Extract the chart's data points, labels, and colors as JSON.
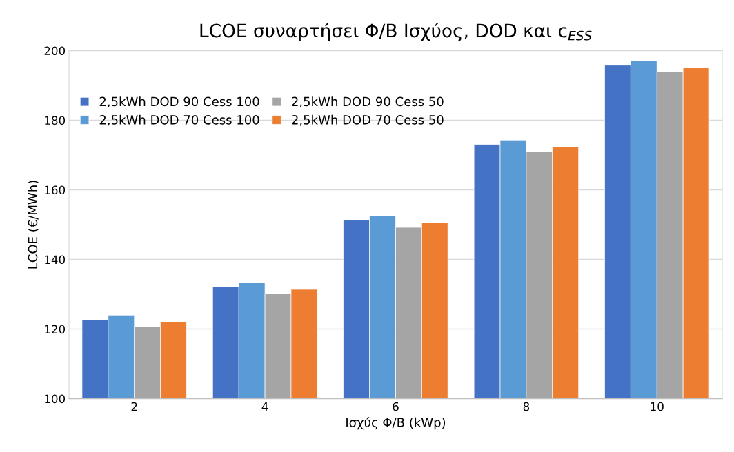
{
  "chart_data": {
    "type": "bar",
    "title": "LCOE συναρτήσει Φ/Β Ισχύος, DOD και c$_{ESS}$",
    "xlabel": "Ισχύς Φ/Β (kWp)",
    "ylabel": "LCOE (€/MWh)",
    "categories": [
      "2",
      "4",
      "6",
      "8",
      "10"
    ],
    "series": [
      {
        "name": "2,5kWh DOD 90 Cess 100",
        "color": "#4472c4",
        "values": [
          122.7,
          132.2,
          151.3,
          173.0,
          195.8
        ]
      },
      {
        "name": "2,5kWh DOD 70 Cess 100",
        "color": "#5b9bd5",
        "values": [
          124.0,
          133.4,
          152.5,
          174.3,
          197.1
        ]
      },
      {
        "name": "2,5kWh DOD 90 Cess 50",
        "color": "#a5a5a5",
        "values": [
          120.7,
          130.2,
          149.2,
          171.0,
          193.9
        ]
      },
      {
        "name": "2,5kWh DOD 70 Cess 50",
        "color": "#ed7d31",
        "values": [
          122.0,
          131.4,
          150.5,
          172.3,
          195.1
        ]
      }
    ],
    "ylim": [
      100,
      200
    ],
    "yticks": [
      100,
      120,
      140,
      160,
      180,
      200
    ],
    "grid": "y",
    "legend": "top left"
  }
}
